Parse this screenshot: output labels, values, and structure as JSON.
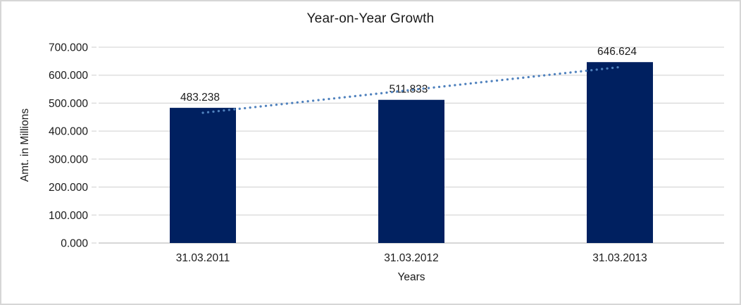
{
  "chart_data": {
    "type": "bar",
    "title": "Year-on-Year Growth",
    "categories": [
      "31.03.2011",
      "31.03.2012",
      "31.03.2013"
    ],
    "values": [
      483.238,
      511.833,
      646.624
    ],
    "data_labels": [
      "483.238",
      "511.833",
      "646.624"
    ],
    "xlabel": "Years",
    "ylabel": "Amt. in Millions",
    "ylim": [
      0,
      700
    ],
    "ytick_step": 100,
    "ytick_labels": [
      "0.000",
      "100.000",
      "200.000",
      "300.000",
      "400.000",
      "500.000",
      "600.000",
      "700.000"
    ],
    "grid": true,
    "legend": "none",
    "colors": {
      "bar": "#002060",
      "trendline": "#4f81bd",
      "gridline": "#d9d9d9",
      "axis_line": "#bfbfbf",
      "text": "#1a1a1a",
      "frame_border": "#d6d6d6"
    },
    "trendline": {
      "type": "linear",
      "style": "dotted"
    }
  }
}
